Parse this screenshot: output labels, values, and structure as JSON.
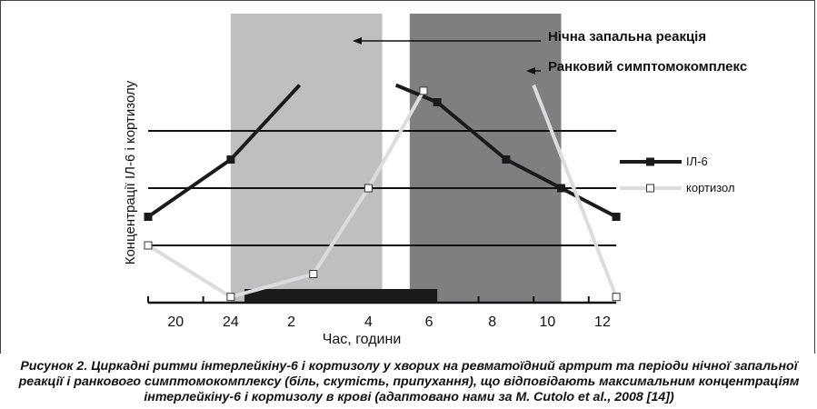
{
  "chart_data": {
    "type": "line",
    "xlabel": "Час, години",
    "ylabel": "Концентрації ІЛ-6 і кортизолу",
    "x_tick_labels": [
      "20",
      "24",
      "2",
      "4",
      "6",
      "8",
      "10",
      "12"
    ],
    "series": [
      {
        "name": "ІЛ-6",
        "color": "#1a1a1a",
        "marker": "filled-square",
        "segments": [
          [
            {
              "x": 20,
              "y": 1.5
            },
            {
              "x": 23,
              "y": 2.5
            },
            {
              "x": 25.5,
              "y": 3.8
            }
          ],
          [
            {
              "x": 29,
              "y": 3.8
            },
            {
              "x": 30.5,
              "y": 3.5
            },
            {
              "x": 33,
              "y": 2.5
            },
            {
              "x": 35,
              "y": 2.0
            },
            {
              "x": 37,
              "y": 1.5
            }
          ]
        ]
      },
      {
        "name": "кортизол",
        "color": "#dcdcdc",
        "marker": "hollow-square",
        "segments": [
          [
            {
              "x": 20,
              "y": 1.0
            },
            {
              "x": 23,
              "y": 0.1
            },
            {
              "x": 26,
              "y": 0.5
            },
            {
              "x": 28,
              "y": 2.0
            },
            {
              "x": 30,
              "y": 3.7
            }
          ],
          [
            {
              "x": 34,
              "y": 3.8
            },
            {
              "x": 37,
              "y": 0.1
            }
          ]
        ]
      }
    ],
    "shaded_periods": [
      {
        "label": "Нічна запальна реакція",
        "from": 23,
        "to": 28.5,
        "color": "#bfbfc1"
      },
      {
        "label": "Ранковий симптомокомплекс",
        "from": 29.5,
        "to": 35,
        "color": "#7f7f81"
      }
    ],
    "sleep_bar": {
      "from": 23.5,
      "to": 30.5,
      "color": "#1a1a1a"
    },
    "grid_y": [
      1,
      2,
      3
    ],
    "ylim": [
      0,
      3.8
    ],
    "legend_position": "right"
  },
  "caption": "Рисунок 2. Циркадні ритми інтерлейкіну-6 і кортизолу у хворих на ревматоїдний артрит та періоди нічної запальної реакції і ранкового симптомокомплексу (біль, скутість, припухання), що відповідають максимальним концентраціям інтерлейкіну-6 і кортизолу в крові (адаптовано нами за M. Cutolo et al., 2008 [14])"
}
